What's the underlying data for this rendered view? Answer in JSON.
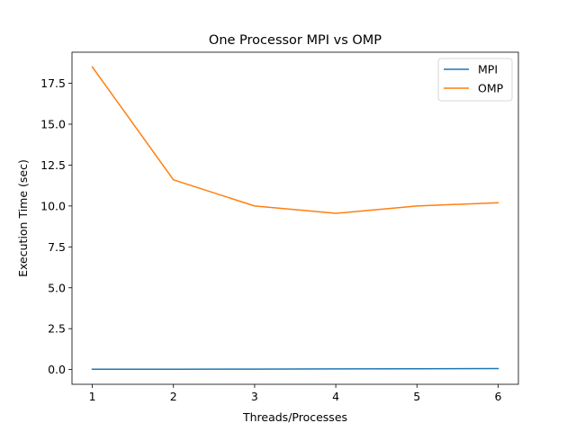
{
  "chart_data": {
    "type": "line",
    "title": "One Processor MPI vs OMP",
    "xlabel": "Threads/Processes",
    "ylabel": "Execution Time (sec)",
    "x": [
      1,
      2,
      3,
      4,
      5,
      6
    ],
    "xlim": [
      0.75,
      6.25
    ],
    "ylim": [
      -0.9,
      19.4
    ],
    "x_ticks": [
      1,
      2,
      3,
      4,
      5,
      6
    ],
    "y_ticks": [
      0.0,
      2.5,
      5.0,
      7.5,
      10.0,
      12.5,
      15.0,
      17.5
    ],
    "y_tick_labels": [
      "0.0",
      "2.5",
      "5.0",
      "7.5",
      "10.0",
      "12.5",
      "15.0",
      "17.5"
    ],
    "grid": false,
    "legend_position": "top-right",
    "series": [
      {
        "name": "MPI",
        "color": "#1f77b4",
        "values": [
          0.02,
          0.02,
          0.03,
          0.04,
          0.05,
          0.06
        ]
      },
      {
        "name": "OMP",
        "color": "#ff7f0e",
        "values": [
          18.5,
          11.6,
          10.0,
          9.55,
          10.0,
          10.2
        ]
      }
    ]
  }
}
